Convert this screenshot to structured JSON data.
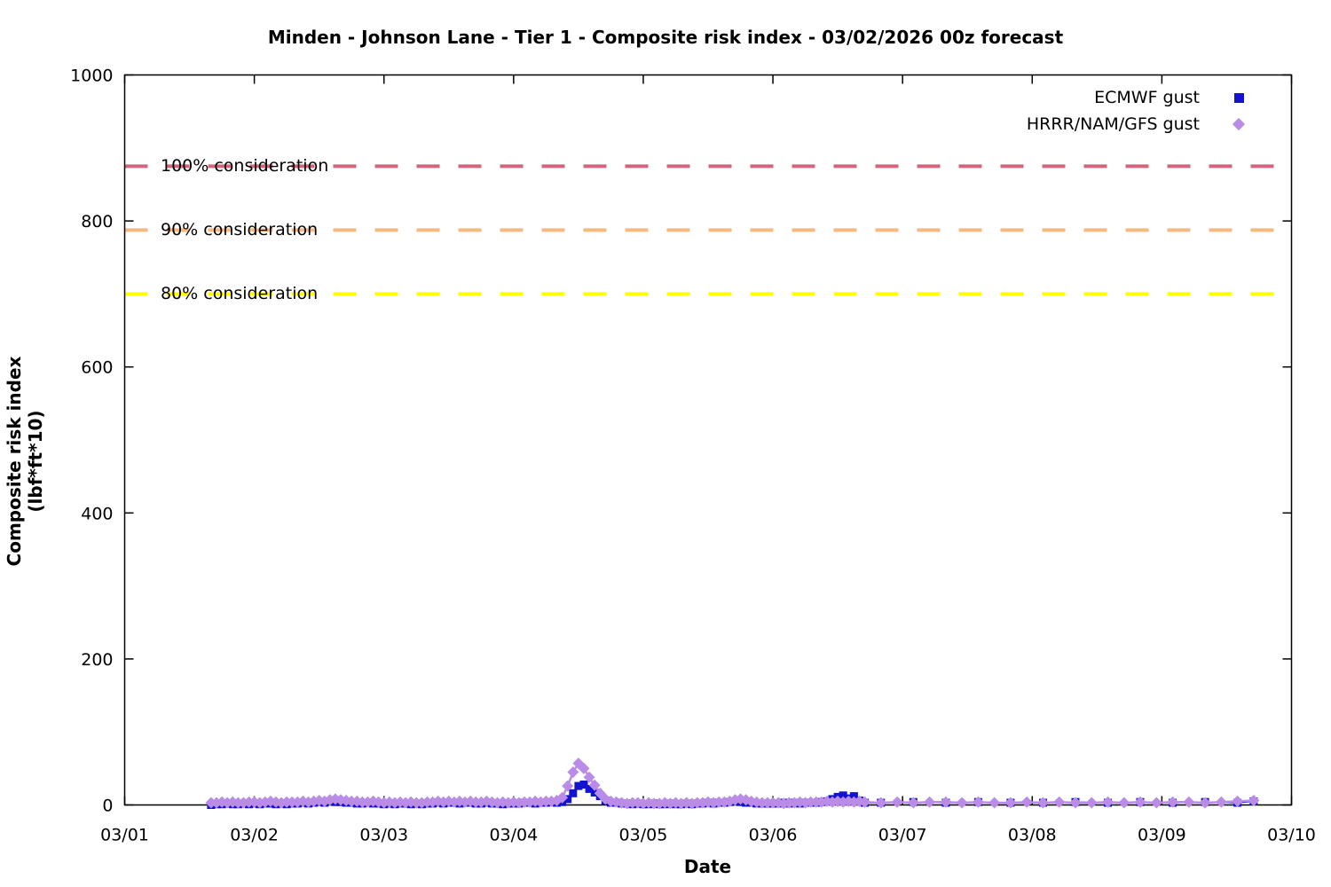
{
  "chart_data": {
    "type": "line",
    "title": "Minden - Johnson Lane - Tier 1 - Composite risk index - 03/02/2026 00z forecast",
    "xlabel": "Date",
    "ylabel": "Composite risk index (lbf*ft*10)",
    "x_tick_labels": [
      "03/01",
      "03/02",
      "03/03",
      "03/04",
      "03/05",
      "03/06",
      "03/07",
      "03/08",
      "03/09",
      "03/10"
    ],
    "x_range_days": [
      0,
      9
    ],
    "ylim": [
      0,
      1000
    ],
    "y_ticks": [
      0,
      200,
      400,
      600,
      800,
      1000
    ],
    "grid": "off",
    "legend_position": "top-right-inside",
    "time_origin_hours": 16,
    "thresholds": [
      {
        "label": "100% consideration",
        "value": 875,
        "color": "#d4637c"
      },
      {
        "label": "90% consideration",
        "value": 787.5,
        "color": "#f8b981"
      },
      {
        "label": "80% consideration",
        "value": 700,
        "color": "#ffff00"
      }
    ],
    "series": [
      {
        "name": "ECMWF gust",
        "marker": "square",
        "color": "#1212cf",
        "segments": [
          {
            "t0": 0,
            "dt": 1,
            "v": [
              0,
              1,
              1,
              2,
              1,
              1,
              2,
              1,
              2,
              1,
              2,
              2,
              1,
              2,
              1,
              2,
              2,
              3,
              2,
              3,
              4,
              3,
              5,
              4,
              4,
              3,
              3,
              2,
              2,
              3,
              2,
              2,
              1,
              2,
              1,
              2,
              2,
              1,
              2,
              1,
              2,
              2,
              3,
              2,
              3,
              3,
              2,
              3,
              3,
              2,
              2,
              3,
              2,
              2,
              1,
              2,
              2,
              2,
              3,
              3,
              2,
              3,
              3,
              4,
              3,
              4,
              8,
              16,
              26,
              28,
              22,
              17,
              12,
              6,
              3,
              3,
              2,
              2,
              1,
              2,
              1,
              1,
              2,
              1,
              1,
              2,
              1,
              1,
              2,
              1,
              2,
              2,
              3,
              2,
              3,
              3,
              4,
              5,
              4,
              3,
              3,
              2,
              2,
              2,
              2,
              2,
              3,
              2,
              3,
              2,
              3,
              3,
              3,
              4,
              5,
              8,
              11,
              13,
              9,
              12,
              6,
              3
            ]
          },
          {
            "t0": 124,
            "dt": 6,
            "v": [
              3,
              4,
              3,
              4,
              3,
              3,
              4,
              3,
              4,
              3,
              4,
              3
            ]
          },
          {
            "t0": 193,
            "dt": 3,
            "v": [
              5
            ]
          }
        ]
      },
      {
        "name": "HRRR/NAM/GFS gust",
        "marker": "diamond",
        "color": "#ba8ce8",
        "segments": [
          {
            "t0": 0,
            "dt": 1,
            "v": [
              3,
              3,
              4,
              3,
              4,
              3,
              3,
              4,
              4,
              3,
              4,
              5,
              4,
              3,
              4,
              4,
              4,
              5,
              4,
              5,
              6,
              5,
              7,
              8,
              7,
              6,
              5,
              5,
              4,
              4,
              5,
              4,
              3,
              4,
              3,
              4,
              3,
              4,
              3,
              3,
              4,
              4,
              5,
              4,
              5,
              4,
              5,
              4,
              5,
              4,
              4,
              5,
              4,
              3,
              4,
              3,
              4,
              3,
              4,
              4,
              5,
              4,
              5,
              5,
              6,
              10,
              26,
              45,
              57,
              50,
              38,
              27,
              16,
              8,
              5,
              4,
              3,
              2,
              3,
              3,
              2,
              3,
              2,
              2,
              3,
              2,
              3,
              2,
              3,
              2,
              3,
              3,
              4,
              3,
              4,
              4,
              5,
              7,
              8,
              7,
              5,
              4,
              3,
              3,
              3,
              3,
              2,
              3,
              3,
              4,
              3,
              4,
              4,
              4,
              5,
              4,
              5,
              4,
              5,
              4,
              5,
              4
            ]
          },
          {
            "t0": 124,
            "dt": 3,
            "v": [
              3,
              4,
              3,
              4,
              4,
              3,
              4,
              3,
              3,
              4,
              3,
              4,
              3,
              3,
              4,
              3,
              4,
              3,
              4,
              4,
              3,
              4,
              5,
              6
            ]
          }
        ]
      }
    ]
  }
}
